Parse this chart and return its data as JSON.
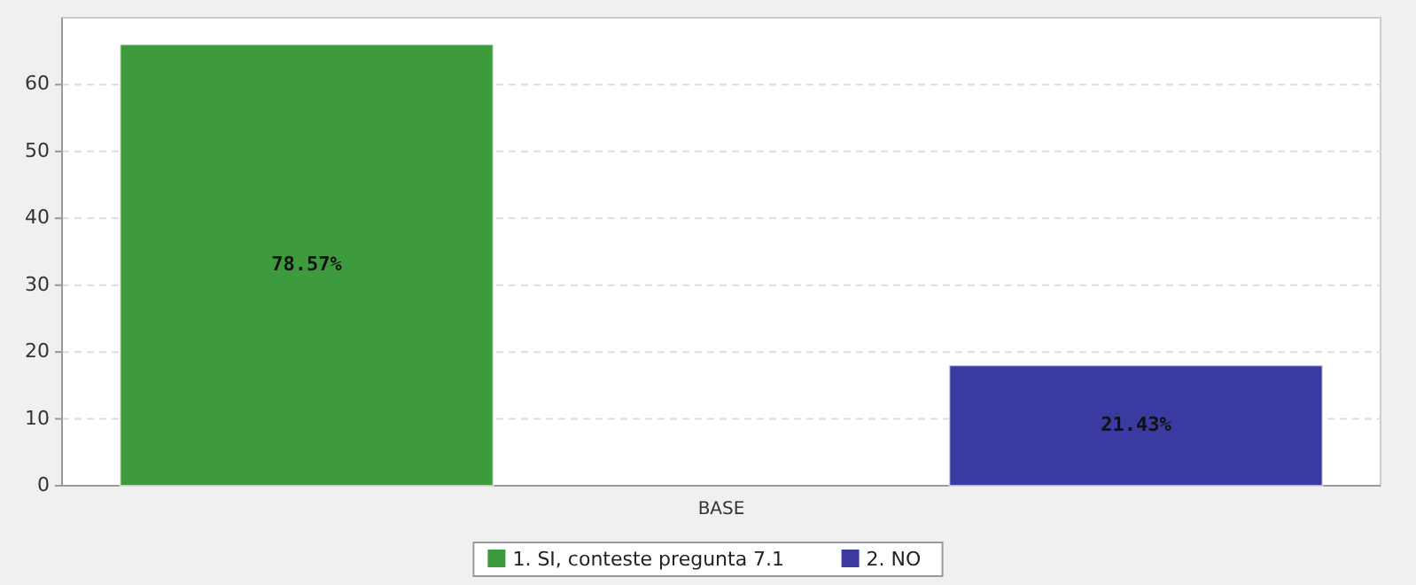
{
  "chart_data": {
    "type": "bar",
    "categories": [
      "BASE"
    ],
    "series": [
      {
        "name": "1. SI, conteste pregunta 7.1",
        "color": "#3d9b3d",
        "values": [
          66
        ]
      },
      {
        "name": "2. NO",
        "color": "#3a3aa0",
        "values": [
          18
        ]
      }
    ],
    "annotations": [
      "78.57%",
      "21.43%"
    ],
    "ylim": [
      0,
      70
    ],
    "yticks": [
      0,
      10,
      20,
      30,
      40,
      50,
      60
    ],
    "grid": "y",
    "legend": "bottom"
  }
}
